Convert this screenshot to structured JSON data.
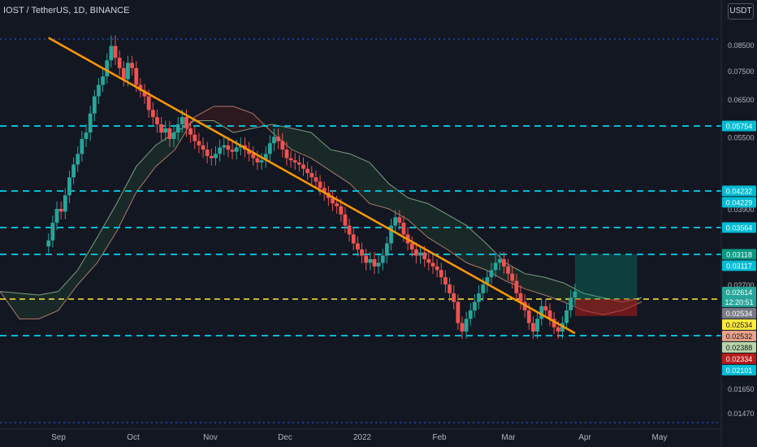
{
  "header": {
    "title": "IOST / TetherUS, 1D, BINANCE"
  },
  "currency_button": "USDT",
  "chart_data": {
    "type": "candlestick",
    "x_ticks": [
      "Sep",
      "Oct",
      "Nov",
      "Dec",
      "2022",
      "Feb",
      "Mar",
      "Apr",
      "May"
    ],
    "y_ticks": [
      0.085,
      0.075,
      0.065,
      0.055,
      0.039,
      0.027,
      0.0165,
      0.0147
    ],
    "y_tick_labels": [
      "0.08500",
      "0.07500",
      "0.06500",
      "0.05500",
      "0.03900",
      "0.02700",
      "0.01650",
      "0.01470"
    ],
    "price_labels": [
      {
        "text": "0.05754",
        "value": 0.05754,
        "color": "#00bcd4"
      },
      {
        "text": "0.04232",
        "value": 0.04232,
        "color": "#00bcd4"
      },
      {
        "text": "0.04229",
        "value": 0.04229,
        "color": "#00bcd4"
      },
      {
        "text": "0.03564",
        "value": 0.03564,
        "color": "#00bcd4"
      },
      {
        "text": "0.03118",
        "value": 0.03118,
        "color": "#089981"
      },
      {
        "text": "0.03117",
        "value": 0.03117,
        "color": "#00bcd4"
      },
      {
        "text": "0.02614",
        "value": 0.02614,
        "color": "#26a69a",
        "sub": "12:20:51"
      },
      {
        "text": "0.02534",
        "value": 0.02534,
        "color": "#787b86"
      },
      {
        "text": "0.02534",
        "value": 0.02534,
        "color": "#ffeb3b"
      },
      {
        "text": "0.02532",
        "value": 0.02532,
        "color": "#e8a389"
      },
      {
        "text": "0.02388",
        "value": 0.02388,
        "color": "#b7d4a8"
      },
      {
        "text": "0.02334",
        "value": 0.02334,
        "color": "#b71c1c"
      },
      {
        "text": "0.02101",
        "value": 0.02101,
        "color": "#00bcd4"
      }
    ],
    "horizontal_levels": [
      {
        "value": 0.086,
        "style": "blue-dotted"
      },
      {
        "value": 0.05754,
        "style": "cyan-dashed"
      },
      {
        "value": 0.0423,
        "style": "cyan-dashed"
      },
      {
        "value": 0.03564,
        "style": "cyan-dashed"
      },
      {
        "value": 0.03117,
        "style": "cyan-dashed"
      },
      {
        "value": 0.02534,
        "style": "yellow-dashed"
      },
      {
        "value": 0.02101,
        "style": "cyan-dashed"
      },
      {
        "value": 0.0143,
        "style": "blue-dotted"
      }
    ],
    "trendline": {
      "from": [
        "2021-08-28",
        0.0865
      ],
      "to": [
        "2022-03-28",
        0.0213
      ],
      "color": "#ff9800"
    },
    "long_position": {
      "entry": 0.02534,
      "target": 0.03118,
      "stop": 0.02334,
      "from": "2022-03-28",
      "to": "2022-04-22"
    },
    "close": [
      0.0335,
      0.0365,
      0.039,
      0.0385,
      0.0415,
      0.0455,
      0.0485,
      0.051,
      0.0545,
      0.056,
      0.061,
      0.066,
      0.07,
      0.073,
      0.079,
      0.0845,
      0.08,
      0.076,
      0.072,
      0.078,
      0.076,
      0.07,
      0.068,
      0.066,
      0.062,
      0.06,
      0.058,
      0.056,
      0.057,
      0.0545,
      0.056,
      0.058,
      0.06,
      0.057,
      0.0555,
      0.054,
      0.053,
      0.052,
      0.0505,
      0.05,
      0.051,
      0.0525,
      0.053,
      0.052,
      0.0515,
      0.0525,
      0.053,
      0.052,
      0.051,
      0.05,
      0.049,
      0.0495,
      0.051,
      0.0535,
      0.055,
      0.054,
      0.052,
      0.05,
      0.0495,
      0.049,
      0.0485,
      0.0475,
      0.0465,
      0.0455,
      0.0445,
      0.043,
      0.042,
      0.041,
      0.04,
      0.0395,
      0.038,
      0.036,
      0.0345,
      0.033,
      0.032,
      0.031,
      0.03,
      0.0305,
      0.0295,
      0.03,
      0.031,
      0.033,
      0.036,
      0.0375,
      0.0365,
      0.0345,
      0.033,
      0.032,
      0.031,
      0.0315,
      0.0305,
      0.03,
      0.0295,
      0.029,
      0.028,
      0.027,
      0.026,
      0.025,
      0.0225,
      0.0215,
      0.023,
      0.024,
      0.025,
      0.026,
      0.027,
      0.028,
      0.029,
      0.03,
      0.0305,
      0.0295,
      0.0285,
      0.0275,
      0.026,
      0.025,
      0.024,
      0.0225,
      0.0215,
      0.023,
      0.0245,
      0.024,
      0.023,
      0.022,
      0.0215,
      0.0225,
      0.024,
      0.0255,
      0.0262
    ],
    "ichimoku_cloud": {
      "span_a": [
        0.0262,
        0.026,
        0.0258,
        0.0262,
        0.029,
        0.034,
        0.04,
        0.048,
        0.053,
        0.056,
        0.059,
        0.059,
        0.056,
        0.057,
        0.058,
        0.057,
        0.056,
        0.052,
        0.051,
        0.049,
        0.044,
        0.041,
        0.04,
        0.038,
        0.036,
        0.033,
        0.03,
        0.0285,
        0.028,
        0.0272,
        0.026,
        0.0255,
        0.025,
        0.0255
      ],
      "span_b": [
        0.0262,
        0.023,
        0.023,
        0.024,
        0.027,
        0.03,
        0.035,
        0.042,
        0.048,
        0.052,
        0.06,
        0.063,
        0.063,
        0.061,
        0.056,
        0.052,
        0.05,
        0.047,
        0.044,
        0.04,
        0.039,
        0.037,
        0.034,
        0.032,
        0.03,
        0.029,
        0.0275,
        0.0265,
        0.0258,
        0.025,
        0.024,
        0.0235,
        0.024,
        0.025
      ]
    }
  }
}
